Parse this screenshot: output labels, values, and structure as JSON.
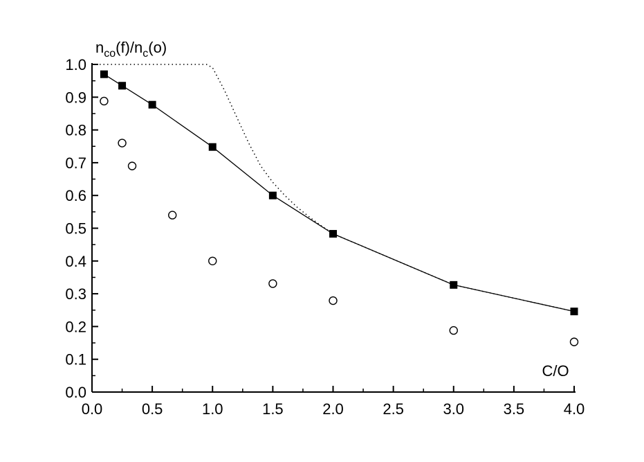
{
  "chart_data": {
    "type": "scatter",
    "title": "",
    "xlabel": "C/O",
    "ylabel": {
      "n1": "n",
      "sub1": "co",
      "mid": "(f)/n",
      "sub2": "c",
      "end": "(o)"
    },
    "xlim": [
      0.0,
      4.0
    ],
    "ylim": [
      0.0,
      1.0
    ],
    "xticks": [
      "0.0",
      "0.5",
      "1.0",
      "1.5",
      "2.0",
      "2.5",
      "3.0",
      "3.5",
      "4.0"
    ],
    "yticks": [
      "0.0",
      "0.1",
      "0.2",
      "0.3",
      "0.4",
      "0.5",
      "0.6",
      "0.7",
      "0.8",
      "0.9",
      "1.0"
    ],
    "grid": false,
    "series": [
      {
        "marker": "filled-square",
        "line": "solid",
        "points": [
          [
            0.1,
            0.97
          ],
          [
            0.25,
            0.935
          ],
          [
            0.5,
            0.877
          ],
          [
            1.0,
            0.748
          ],
          [
            1.5,
            0.6
          ],
          [
            2.0,
            0.483
          ],
          [
            3.0,
            0.327
          ],
          [
            4.0,
            0.246
          ]
        ]
      },
      {
        "marker": "open-circle",
        "line": "none",
        "points": [
          [
            0.1,
            0.888
          ],
          [
            0.25,
            0.76
          ],
          [
            0.333,
            0.69
          ],
          [
            0.667,
            0.54
          ],
          [
            1.0,
            0.4
          ],
          [
            1.5,
            0.331
          ],
          [
            2.0,
            0.279
          ],
          [
            3.0,
            0.188
          ],
          [
            4.0,
            0.153
          ]
        ]
      },
      {
        "marker": "none",
        "line": "dotted",
        "points": [
          [
            0.0,
            1.0
          ],
          [
            0.95,
            1.0
          ],
          [
            1.0,
            0.99
          ],
          [
            1.1,
            0.92
          ],
          [
            1.2,
            0.84
          ],
          [
            1.3,
            0.76
          ],
          [
            1.4,
            0.69
          ],
          [
            1.5,
            0.64
          ],
          [
            1.6,
            0.6
          ],
          [
            1.7,
            0.565
          ],
          [
            1.8,
            0.535
          ],
          [
            1.9,
            0.508
          ],
          [
            2.0,
            0.483
          ],
          [
            3.0,
            0.327
          ],
          [
            4.0,
            0.246
          ]
        ]
      }
    ],
    "colors": {
      "axis": "#000000",
      "series": "#000000",
      "background": "#ffffff"
    }
  }
}
